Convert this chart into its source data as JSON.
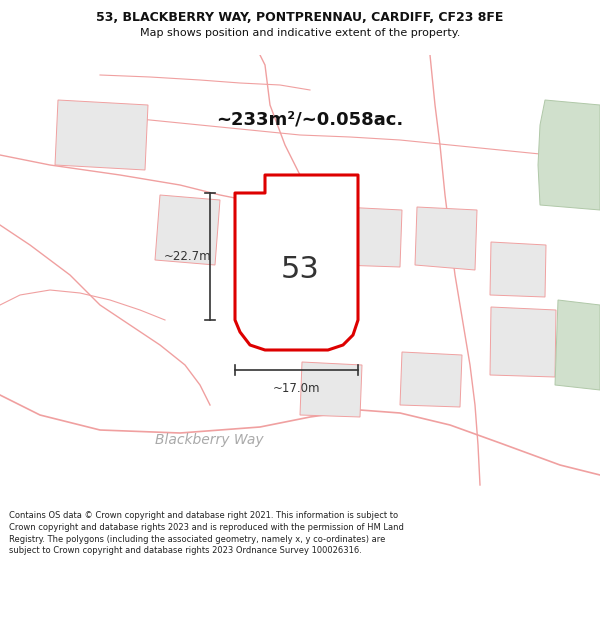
{
  "title_line1": "53, BLACKBERRY WAY, PONTPRENNAU, CARDIFF, CF23 8FE",
  "title_line2": "Map shows position and indicative extent of the property.",
  "area_text": "~233m²/~0.058ac.",
  "property_number": "53",
  "dim_width": "~17.0m",
  "dim_height": "~22.7m",
  "street_label": "Blackberry Way",
  "footer_text": "Contains OS data © Crown copyright and database right 2021. This information is subject to Crown copyright and database rights 2023 and is reproduced with the permission of HM Land Registry. The polygons (including the associated geometry, namely x, y co-ordinates) are subject to Crown copyright and database rights 2023 Ordnance Survey 100026316.",
  "map_bg": "#f7f4f0",
  "plot_fill": "#ffffff",
  "plot_edge": "#dd0000",
  "building_fill": "#e8e8e8",
  "building_edge": "#f0a0a0",
  "road_line_color": "#f0a0a0",
  "green_fill": "#d0e0cc",
  "green_edge": "#b0c8a8",
  "title_bg": "#ffffff",
  "footer_bg": "#ffffff",
  "dim_color": "#333333",
  "text_color": "#111111",
  "street_color": "#aaaaaa"
}
